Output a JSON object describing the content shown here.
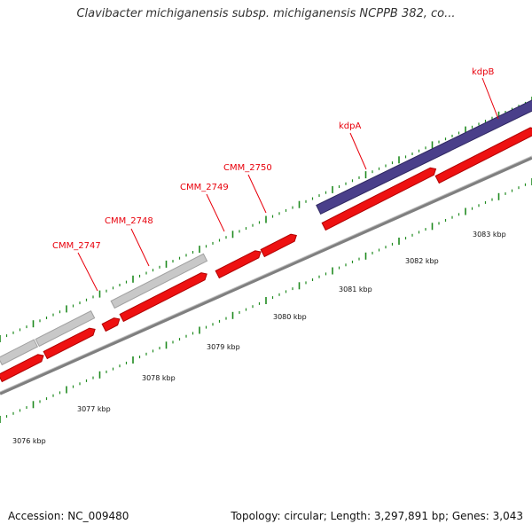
{
  "title": "Clavibacter michiganensis subsp. michiganensis NCPPB 382, co...",
  "footer": {
    "accession": "Accession: NC_009480",
    "summary": "Topology: circular; Length: 3,297,891 bp; Genes: 3,043"
  },
  "colors": {
    "forward_cds": "#ee1111",
    "reverse_cds": "#c8c8c8",
    "kdp_operon": "#4a3f8a",
    "backbone": "#7f7f7f",
    "ticks": "#1f8a1f",
    "label": "#e8000b"
  },
  "gene_labels": [
    {
      "text": "CMM_2747"
    },
    {
      "text": "CMM_2748"
    },
    {
      "text": "CMM_2749"
    },
    {
      "text": "CMM_2750"
    },
    {
      "text": "kdpA"
    },
    {
      "text": "kdpB"
    }
  ],
  "kbp_labels": [
    {
      "text": "3076 kbp"
    },
    {
      "text": "3077 kbp"
    },
    {
      "text": "3078 kbp"
    },
    {
      "text": "3079 kbp"
    },
    {
      "text": "3080 kbp"
    },
    {
      "text": "3081 kbp"
    },
    {
      "text": "3082 kbp"
    },
    {
      "text": "3083 kbp"
    }
  ]
}
